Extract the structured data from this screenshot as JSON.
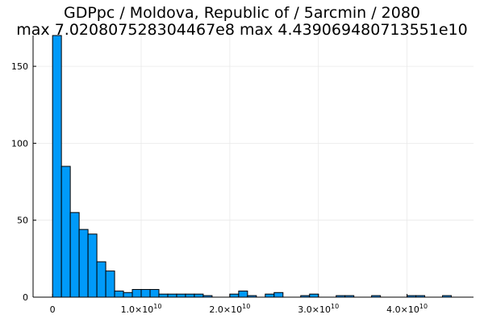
{
  "chart_data": {
    "type": "bar",
    "title_lines": [
      "GDPpc / Moldova, Republic of / 5arcmin / 2080",
      "max 7.020807528304467e8  max 4.439069480713551e10"
    ],
    "xlabel": "",
    "ylabel": "",
    "xlim": [
      -2200000000.0,
      47500000000.0
    ],
    "ylim": [
      0,
      170
    ],
    "bin_width": 1000000000.0,
    "bin_start": 0,
    "values": [
      170,
      85,
      55,
      44,
      41,
      23,
      17,
      4,
      3,
      5,
      5,
      5,
      2,
      2,
      2,
      2,
      2,
      1,
      0,
      0,
      2,
      4,
      1,
      0,
      2,
      3,
      0,
      0,
      1,
      2,
      0,
      0,
      1,
      1,
      0,
      0,
      1,
      0,
      0,
      0,
      1,
      1,
      0,
      0,
      1
    ],
    "x_ticks": [
      {
        "value": 0,
        "label": "0",
        "mantissa": "",
        "exp": ""
      },
      {
        "value": 10000000000.0,
        "label": "",
        "mantissa": "1.0×10",
        "exp": "10"
      },
      {
        "value": 20000000000.0,
        "label": "",
        "mantissa": "2.0×10",
        "exp": "10"
      },
      {
        "value": 30000000000.0,
        "label": "",
        "mantissa": "3.0×10",
        "exp": "10"
      },
      {
        "value": 40000000000.0,
        "label": "",
        "mantissa": "4.0×10",
        "exp": "10"
      }
    ],
    "y_ticks": [
      {
        "value": 0,
        "label": "0"
      },
      {
        "value": 50,
        "label": "50"
      },
      {
        "value": 100,
        "label": "100"
      },
      {
        "value": 150,
        "label": "150"
      }
    ],
    "grid": true,
    "legend": false,
    "colors": {
      "bar_fill": "#009af9",
      "bar_stroke": "#000000",
      "grid": "#e9e9e9",
      "axis": "#000000"
    }
  }
}
